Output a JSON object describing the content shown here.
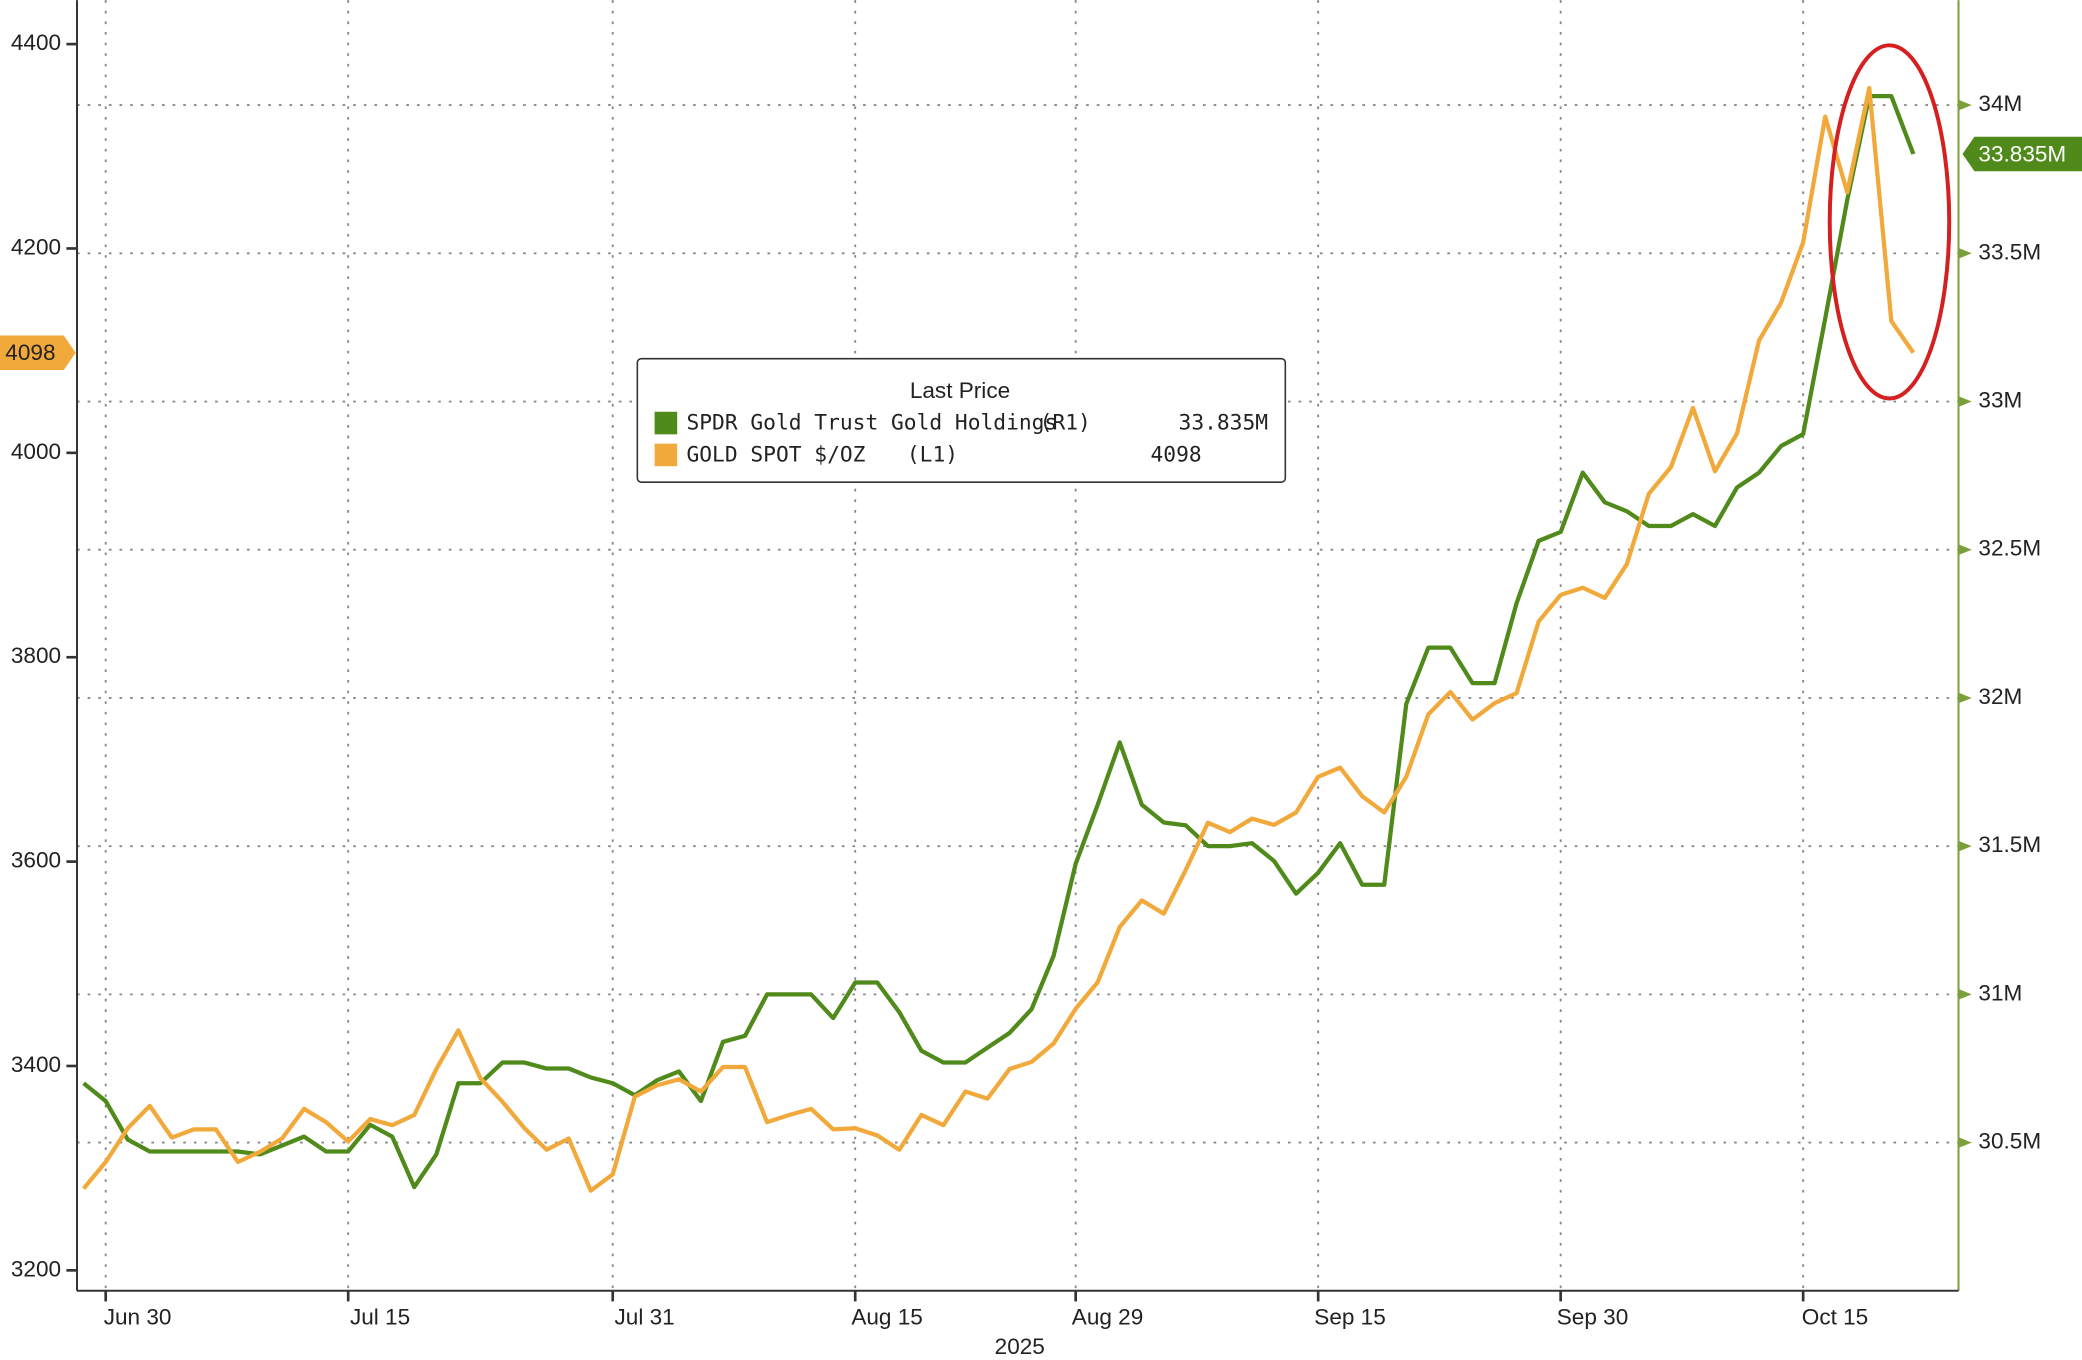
{
  "chart_data": {
    "type": "line",
    "x": [
      "2025-06-27",
      "2025-06-30",
      "2025-07-01",
      "2025-07-02",
      "2025-07-03",
      "2025-07-04",
      "2025-07-07",
      "2025-07-08",
      "2025-07-09",
      "2025-07-10",
      "2025-07-11",
      "2025-07-14",
      "2025-07-15",
      "2025-07-16",
      "2025-07-17",
      "2025-07-18",
      "2025-07-21",
      "2025-07-22",
      "2025-07-23",
      "2025-07-24",
      "2025-07-25",
      "2025-07-28",
      "2025-07-29",
      "2025-07-30",
      "2025-07-31",
      "2025-08-01",
      "2025-08-04",
      "2025-08-05",
      "2025-08-06",
      "2025-08-07",
      "2025-08-08",
      "2025-08-11",
      "2025-08-12",
      "2025-08-13",
      "2025-08-14",
      "2025-08-15",
      "2025-08-18",
      "2025-08-19",
      "2025-08-20",
      "2025-08-21",
      "2025-08-22",
      "2025-08-25",
      "2025-08-26",
      "2025-08-27",
      "2025-08-28",
      "2025-08-29",
      "2025-09-01",
      "2025-09-02",
      "2025-09-03",
      "2025-09-04",
      "2025-09-05",
      "2025-09-08",
      "2025-09-09",
      "2025-09-10",
      "2025-09-11",
      "2025-09-12",
      "2025-09-15",
      "2025-09-16",
      "2025-09-17",
      "2025-09-18",
      "2025-09-19",
      "2025-09-22",
      "2025-09-23",
      "2025-09-24",
      "2025-09-25",
      "2025-09-26",
      "2025-09-29",
      "2025-09-30",
      "2025-10-01",
      "2025-10-02",
      "2025-10-03",
      "2025-10-06",
      "2025-10-07",
      "2025-10-08",
      "2025-10-09",
      "2025-10-10",
      "2025-10-13",
      "2025-10-14",
      "2025-10-15",
      "2025-10-16",
      "2025-10-17",
      "2025-10-20",
      "2025-10-21",
      "2025-10-22"
    ],
    "xticks": [
      {
        "value": "2025-06-30",
        "label": "Jun 30"
      },
      {
        "value": "2025-07-15",
        "label": "Jul 15"
      },
      {
        "value": "2025-07-31",
        "label": "Jul 31"
      },
      {
        "value": "2025-08-15",
        "label": "Aug 15"
      },
      {
        "value": "2025-08-29",
        "label": "Aug 29"
      },
      {
        "value": "2025-09-15",
        "label": "Sep 15"
      },
      {
        "value": "2025-09-30",
        "label": "Sep 30"
      },
      {
        "value": "2025-10-15",
        "label": "Oct 15"
      }
    ],
    "xlabel": "2025",
    "ylim": [
      3180,
      4443
    ],
    "yticks": [
      3200,
      3400,
      3600,
      3800,
      4000,
      4200,
      4400
    ],
    "y2lim": [
      30.0,
      34.354
    ],
    "y2ticks": [
      {
        "value": 30.5,
        "label": "30.5M"
      },
      {
        "value": 31,
        "label": "31M"
      },
      {
        "value": 31.5,
        "label": "31.5M"
      },
      {
        "value": 32,
        "label": "32M"
      },
      {
        "value": 32.5,
        "label": "32.5M"
      },
      {
        "value": 33,
        "label": "33M"
      },
      {
        "value": 33.5,
        "label": "33.5M"
      },
      {
        "value": 34,
        "label": "34M"
      }
    ],
    "grid": true,
    "legend": {
      "title": "Last Price",
      "loc": "upper center"
    },
    "series": [
      {
        "name": "SPDR Gold Trust Gold Holdings",
        "axis_tag": "(R1)",
        "axis": "y2",
        "color": "#4f8a1b",
        "last_label": "33.835M",
        "values": [
          30.7,
          30.64,
          30.51,
          30.47,
          30.47,
          30.47,
          30.47,
          30.47,
          30.46,
          30.49,
          30.52,
          30.47,
          30.47,
          30.56,
          30.52,
          30.35,
          30.46,
          30.7,
          30.7,
          30.77,
          30.77,
          30.75,
          30.75,
          30.72,
          30.7,
          30.66,
          30.71,
          30.74,
          30.64,
          30.84,
          30.86,
          31.0,
          31.0,
          31.0,
          30.92,
          31.04,
          31.04,
          30.94,
          30.81,
          30.77,
          30.77,
          30.82,
          30.87,
          30.95,
          31.13,
          31.44,
          31.64,
          31.85,
          31.64,
          31.58,
          31.57,
          31.5,
          31.5,
          31.51,
          31.45,
          31.34,
          31.41,
          31.51,
          31.37,
          31.37,
          31.98,
          32.17,
          32.17,
          32.05,
          32.05,
          32.32,
          32.53,
          32.56,
          32.76,
          32.66,
          32.63,
          32.58,
          32.58,
          32.62,
          32.58,
          32.71,
          32.76,
          32.85,
          32.89,
          33.28,
          33.68,
          34.03,
          34.03,
          33.835
        ]
      },
      {
        "name": "GOLD SPOT $/OZ",
        "axis_tag": "(L1)",
        "axis": "y",
        "color": "#f2a93b",
        "last_label": "4098",
        "values": [
          3280,
          3306,
          3339,
          3361,
          3330,
          3338,
          3338,
          3306,
          3316,
          3329,
          3358,
          3345,
          3326,
          3348,
          3342,
          3352,
          3397,
          3435,
          3388,
          3365,
          3339,
          3318,
          3329,
          3278,
          3294,
          3370,
          3381,
          3387,
          3375,
          3399,
          3399,
          3345,
          3352,
          3358,
          3338,
          3339,
          3332,
          3318,
          3352,
          3342,
          3375,
          3368,
          3397,
          3404,
          3422,
          3456,
          3482,
          3536,
          3562,
          3549,
          3592,
          3638,
          3629,
          3642,
          3636,
          3648,
          3683,
          3692,
          3664,
          3648,
          3683,
          3744,
          3766,
          3739,
          3755,
          3765,
          3835,
          3861,
          3868,
          3858,
          3891,
          3960,
          3986,
          4044,
          3982,
          4019,
          4110,
          4147,
          4206,
          4329,
          4255,
          4357,
          4129,
          4098
        ]
      }
    ]
  }
}
